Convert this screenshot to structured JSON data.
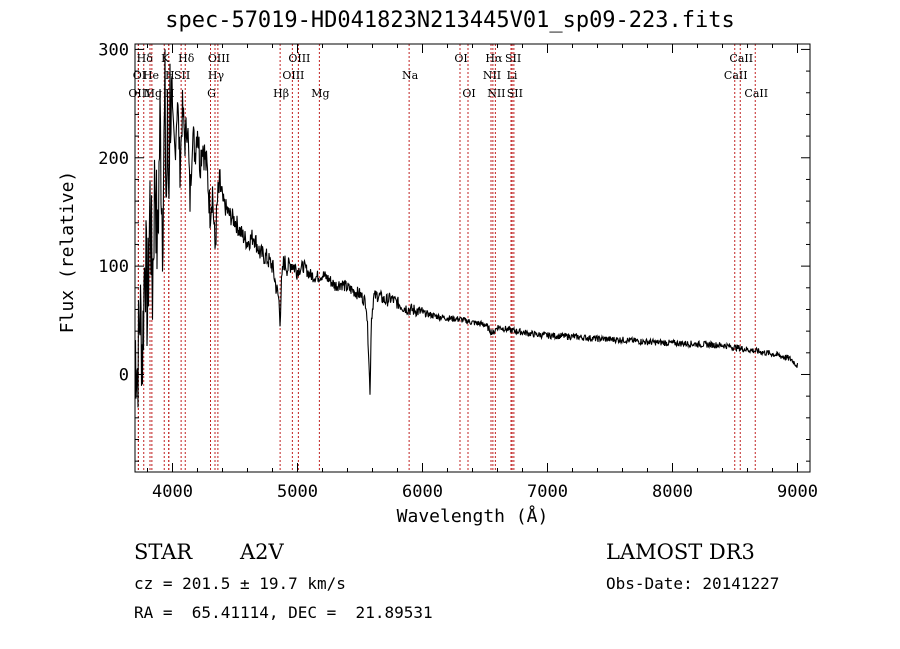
{
  "chart_data": {
    "type": "line",
    "title": "spec-57019-HD041823N213445V01_sp09-223.fits",
    "xlabel": "Wavelength (Å)",
    "ylabel": "Flux (relative)",
    "xlim": [
      3700,
      9100
    ],
    "ylim": [
      -90,
      305
    ],
    "xticks": [
      4000,
      5000,
      6000,
      7000,
      8000,
      9000
    ],
    "yticks": [
      0,
      100,
      200,
      300
    ],
    "grid": false,
    "series": [
      {
        "name": "spectrum",
        "color": "#000000",
        "x": [
          3700,
          3720,
          3740,
          3760,
          3780,
          3800,
          3820,
          3840,
          3860,
          3880,
          3900,
          3920,
          3940,
          3950,
          3960,
          3970,
          3980,
          4000,
          4020,
          4040,
          4060,
          4080,
          4100,
          4120,
          4140,
          4160,
          4180,
          4200,
          4220,
          4240,
          4260,
          4280,
          4300,
          4320,
          4340,
          4360,
          4380,
          4400,
          4450,
          4500,
          4550,
          4600,
          4650,
          4700,
          4750,
          4800,
          4830,
          4850,
          4861,
          4870,
          4890,
          4920,
          4950,
          5000,
          5050,
          5100,
          5150,
          5200,
          5250,
          5300,
          5350,
          5400,
          5450,
          5500,
          5550,
          5570,
          5580,
          5590,
          5610,
          5650,
          5700,
          5750,
          5800,
          5850,
          5900,
          5950,
          6000,
          6100,
          6200,
          6300,
          6400,
          6500,
          6563,
          6600,
          6700,
          6800,
          6900,
          7000,
          7200,
          7400,
          7600,
          7800,
          8000,
          8200,
          8400,
          8500,
          8600,
          8700,
          8800,
          8900,
          8950,
          9000
        ],
        "y": [
          30,
          5,
          60,
          20,
          120,
          55,
          160,
          80,
          190,
          110,
          235,
          140,
          250,
          150,
          225,
          170,
          260,
          230,
          205,
          255,
          190,
          245,
          215,
          235,
          160,
          225,
          205,
          230,
          195,
          215,
          200,
          185,
          150,
          170,
          115,
          160,
          175,
          160,
          148,
          142,
          130,
          122,
          128,
          112,
          108,
          100,
          80,
          70,
          50,
          80,
          105,
          98,
          103,
          96,
          100,
          92,
          90,
          92,
          88,
          82,
          84,
          80,
          77,
          74,
          66,
          20,
          -20,
          50,
          72,
          73,
          68,
          70,
          66,
          62,
          60,
          59,
          57,
          54,
          52,
          51,
          48,
          46,
          38,
          44,
          41,
          39,
          37,
          36,
          35,
          33,
          32,
          30,
          29,
          28,
          27,
          25,
          23,
          21,
          19,
          16,
          14,
          8
        ]
      }
    ],
    "lines": [
      {
        "label": "Hδ",
        "x": 3770,
        "row": 0
      },
      {
        "label": "K",
        "x": 3934,
        "row": 0
      },
      {
        "label": "Hδ",
        "x": 4102,
        "row": 0
      },
      {
        "label": "OIII",
        "x": 4363,
        "row": 0
      },
      {
        "label": "OIII",
        "x": 5007,
        "row": 0
      },
      {
        "label": "OI",
        "x": 6300,
        "row": 0
      },
      {
        "label": "Hα",
        "x": 6563,
        "row": 0
      },
      {
        "label": "SII",
        "x": 6717,
        "row": 0
      },
      {
        "label": "CaII",
        "x": 8542,
        "row": 0
      },
      {
        "label": "OI",
        "x": 3727,
        "row": 1
      },
      {
        "label": "He",
        "x": 3820,
        "row": 1
      },
      {
        "label": "H",
        "x": 3970,
        "row": 1
      },
      {
        "label": "SII",
        "x": 4069,
        "row": 1
      },
      {
        "label": "Hγ",
        "x": 4340,
        "row": 1
      },
      {
        "label": "OIII",
        "x": 4959,
        "row": 1
      },
      {
        "label": "NII",
        "x": 6548,
        "row": 1
      },
      {
        "label": "Li",
        "x": 6708,
        "row": 1
      },
      {
        "label": "CaII",
        "x": 8498,
        "row": 1
      },
      {
        "label": "OIII",
        "x": 3727,
        "row": 2
      },
      {
        "label": "Mg",
        "x": 3835,
        "row": 2
      },
      {
        "label": "H",
        "x": 3970,
        "row": 2
      },
      {
        "label": "G",
        "x": 4304,
        "row": 2
      },
      {
        "label": "Hβ",
        "x": 4861,
        "row": 2
      },
      {
        "label": "Mg",
        "x": 5175,
        "row": 2
      },
      {
        "label": "Na",
        "x": 5893,
        "row": 0.7
      },
      {
        "label": "OI",
        "x": 6364,
        "row": 2
      },
      {
        "label": "NII",
        "x": 6583,
        "row": 2
      },
      {
        "label": "SII",
        "x": 6731,
        "row": 2
      },
      {
        "label": "CaII",
        "x": 8662,
        "row": 2
      }
    ]
  },
  "info": {
    "object_type": "STAR",
    "spectral_class": "A2V",
    "cz": "cz = 201.5 ± 19.7 km/s",
    "coords": "RA =  65.41114, DEC =  21.89531",
    "survey": "LAMOST DR3",
    "obs_date": "Obs-Date: 20141227"
  }
}
